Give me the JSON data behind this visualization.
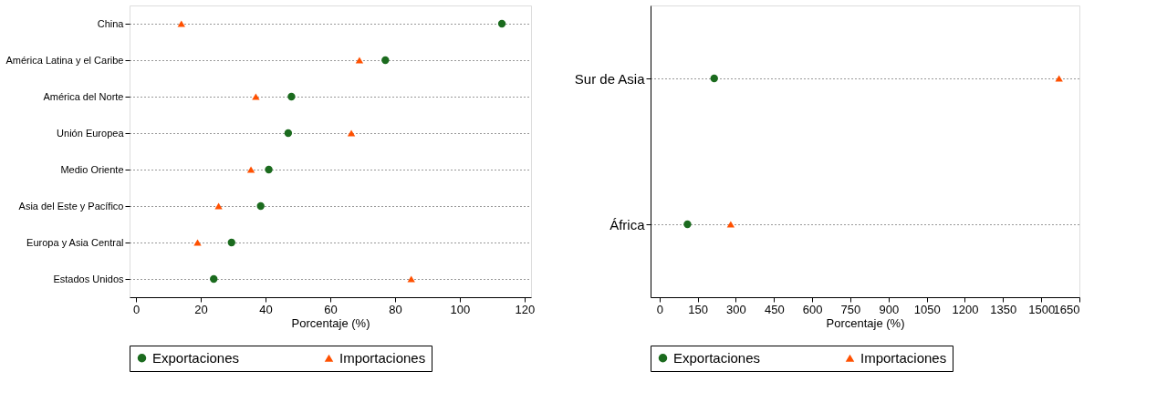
{
  "chart_data": [
    {
      "type": "scatter",
      "orientation": "horizontal",
      "categories": [
        "China",
        "América Latina y el Caribe",
        "América del Norte",
        "Unión Europea",
        "Medio Oriente",
        "Asia del Este y Pacífico",
        "Europa y Asia Central",
        "Estados Unidos"
      ],
      "xlabel": "Porcentaje (%)",
      "xlim": [
        -2,
        122
      ],
      "xticks": [
        0,
        20,
        40,
        60,
        80,
        100,
        120
      ],
      "grid": "y",
      "line_style": "dotted",
      "legend": "bottom",
      "series": [
        {
          "name": "Exportaciones",
          "color": "#1b6b1e",
          "marker": "circle",
          "values": [
            113,
            77,
            48,
            47,
            41,
            38.5,
            29.5,
            24
          ]
        },
        {
          "name": "Importaciones",
          "color": "#ff5000",
          "marker": "triangle",
          "values": [
            14,
            69,
            37,
            66.5,
            35.5,
            25.5,
            19,
            85
          ]
        }
      ]
    },
    {
      "type": "scatter",
      "orientation": "horizontal",
      "categories": [
        "Sur de Asia",
        "África"
      ],
      "xlabel": "Porcentaje (%)",
      "xlim": [
        -35,
        1650
      ],
      "xticks": [
        0,
        150,
        300,
        450,
        600,
        750,
        900,
        1050,
        1200,
        1350,
        1500,
        1650
      ],
      "grid": "y",
      "line_style": "dotted",
      "legend": "bottom",
      "series": [
        {
          "name": "Exportaciones",
          "color": "#1b6b1e",
          "marker": "circle",
          "values": [
            215,
            110
          ]
        },
        {
          "name": "Importaciones",
          "color": "#ff5000",
          "marker": "triangle",
          "values": [
            1570,
            280
          ]
        }
      ]
    }
  ]
}
